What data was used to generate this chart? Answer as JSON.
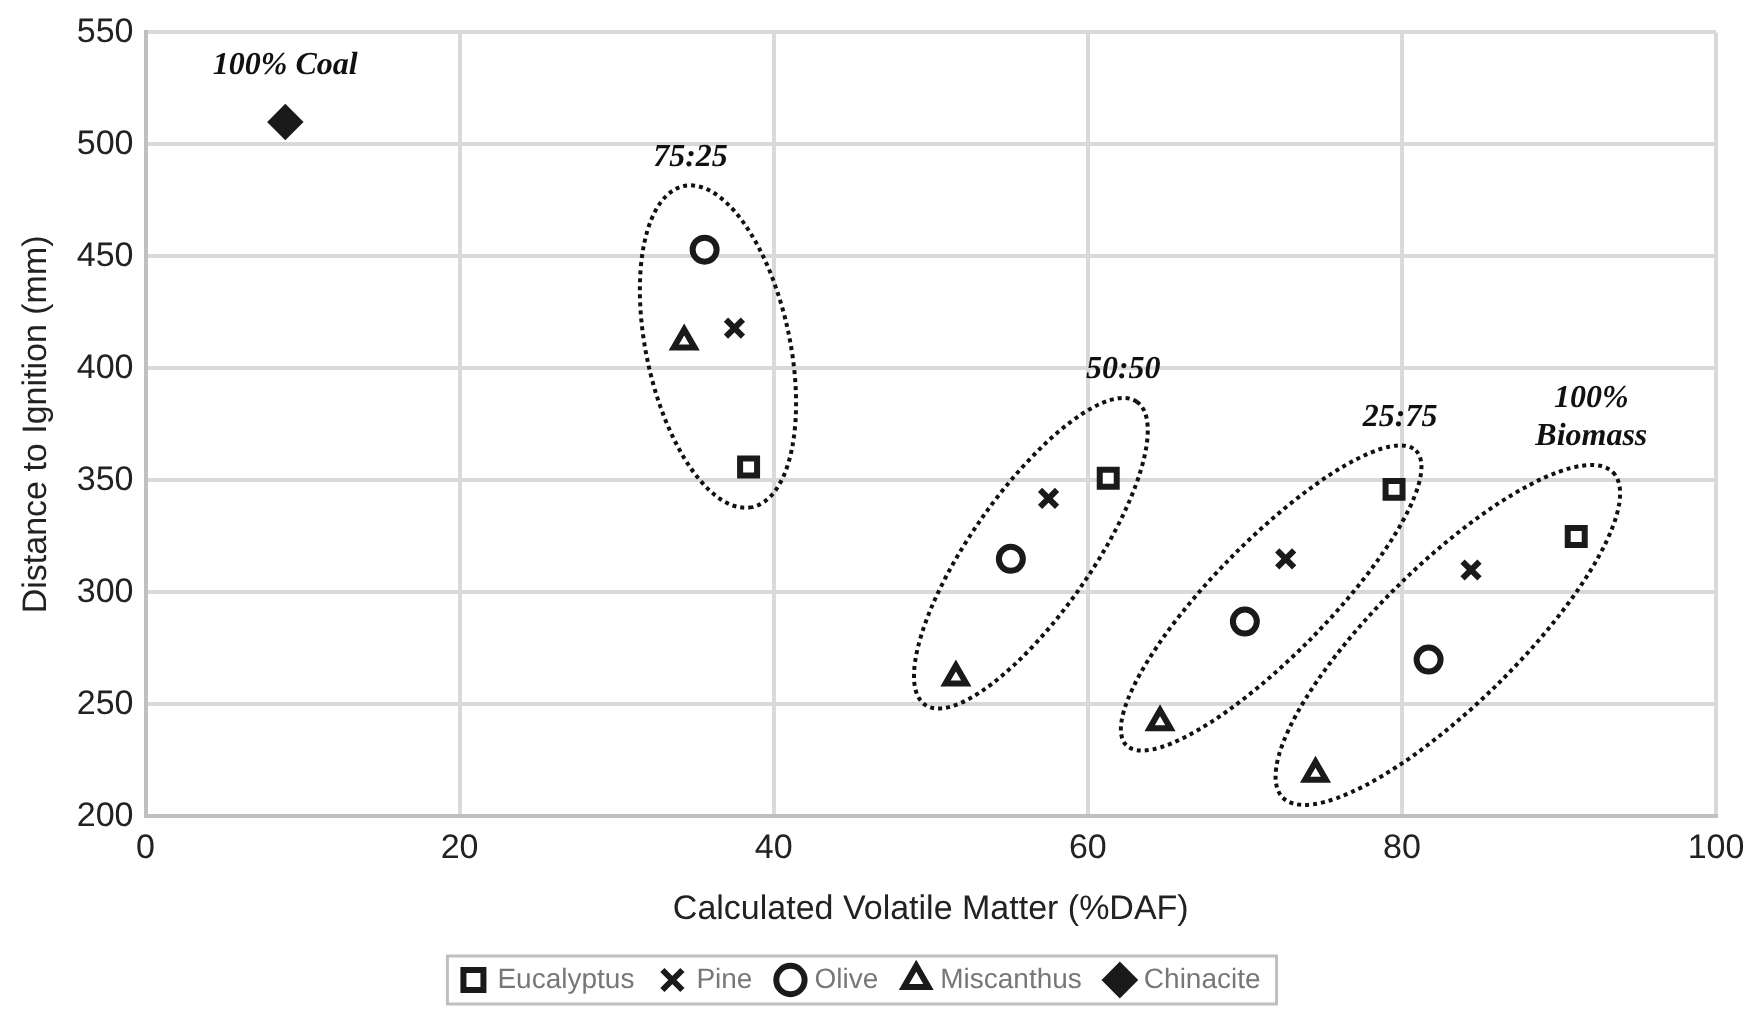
{
  "chart_data": {
    "type": "scatter",
    "xlabel": "Calculated Volatile Matter (%DAF)",
    "ylabel": "Distance to Ignition (mm)",
    "xlim": [
      0,
      100
    ],
    "xticks": [
      0,
      20,
      40,
      60,
      80,
      100
    ],
    "ylim": [
      200,
      550
    ],
    "yticks": [
      200,
      250,
      300,
      350,
      400,
      450,
      500,
      550
    ],
    "grid": true,
    "legend": "bottom",
    "series": [
      {
        "name": "Eucalyptus",
        "color": "#1a1a1a",
        "marker": "square",
        "x": [
          38.4,
          61.3,
          79.5,
          91.1
        ],
        "values": [
          356,
          351,
          346,
          325
        ]
      },
      {
        "name": "Pine",
        "color": "#1a1a1a",
        "marker": "cross",
        "x": [
          37.5,
          57.5,
          72.6,
          84.4
        ],
        "values": [
          418,
          342,
          315,
          310
        ]
      },
      {
        "name": "Olive",
        "color": "#1a1a1a",
        "marker": "circle",
        "x": [
          35.6,
          55.1,
          70,
          81.7
        ],
        "values": [
          453,
          315,
          287,
          270
        ]
      },
      {
        "name": "Miscanthus",
        "color": "#1a1a1a",
        "marker": "triangle",
        "x": [
          34.3,
          51.6,
          64.6,
          74.5
        ],
        "values": [
          412,
          262,
          242,
          219
        ]
      },
      {
        "name": "Chinacite",
        "color": "#1a1a1a",
        "marker": "diamond",
        "x": [
          8.9
        ],
        "values": [
          510
        ]
      }
    ],
    "annotations": [
      "100% Coal",
      "75:25",
      "50:50",
      "25:75",
      "100%\nBiomass"
    ]
  }
}
